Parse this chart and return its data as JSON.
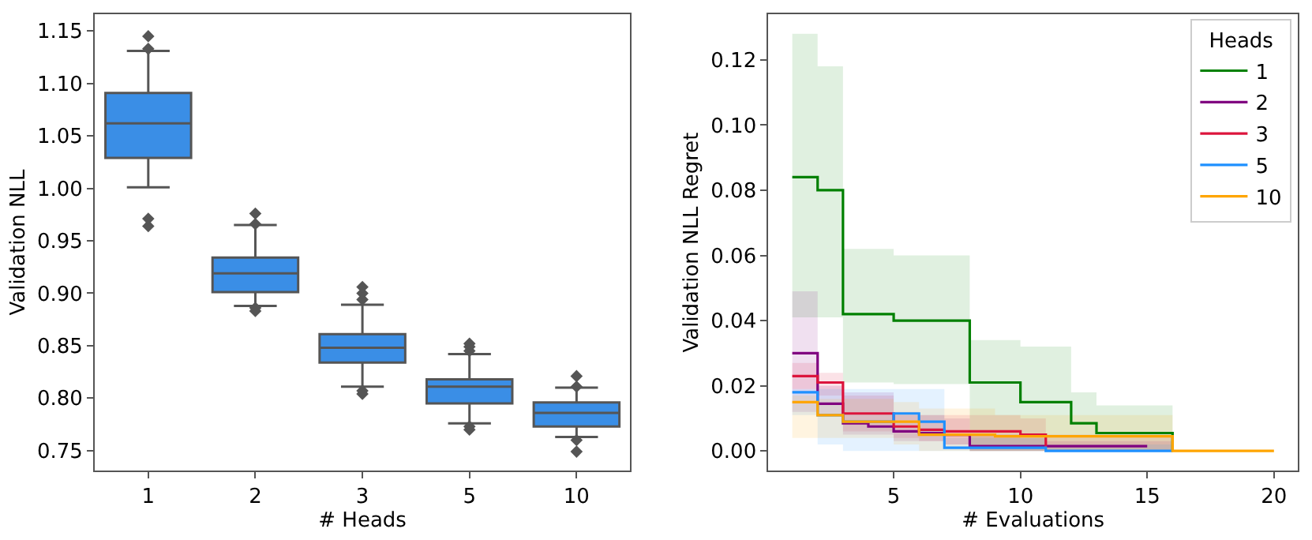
{
  "chart_data": [
    {
      "type": "box",
      "xlabel": "# Heads",
      "ylabel": "Validation NLL",
      "categories": [
        "1",
        "2",
        "3",
        "5",
        "10"
      ],
      "ylim": [
        0.731,
        1.166
      ],
      "yticks": [
        {
          "value": 0.75,
          "label": "0.75"
        },
        {
          "value": 0.8,
          "label": "0.80"
        },
        {
          "value": 0.85,
          "label": "0.85"
        },
        {
          "value": 0.9,
          "label": "0.90"
        },
        {
          "value": 0.95,
          "label": "0.95"
        },
        {
          "value": 1.0,
          "label": "1.00"
        },
        {
          "value": 1.05,
          "label": "1.05"
        },
        {
          "value": 1.1,
          "label": "1.10"
        },
        {
          "value": 1.15,
          "label": "1.15"
        }
      ],
      "legend": false,
      "series": [
        {
          "color": "#3a8ee6",
          "boxes": [
            {
              "low": 1.001,
              "q1": 1.029,
              "median": 1.062,
              "q3": 1.091,
              "high": 1.131,
              "outliers": [
                0.964,
                0.971,
                1.133,
                1.145
              ]
            },
            {
              "low": 0.888,
              "q1": 0.901,
              "median": 0.919,
              "q3": 0.934,
              "high": 0.965,
              "outliers": [
                0.883,
                0.886,
                0.966,
                0.976
              ]
            },
            {
              "low": 0.811,
              "q1": 0.834,
              "median": 0.848,
              "q3": 0.861,
              "high": 0.889,
              "outliers": [
                0.804,
                0.807,
                0.894,
                0.9,
                0.906
              ]
            },
            {
              "low": 0.776,
              "q1": 0.795,
              "median": 0.811,
              "q3": 0.818,
              "high": 0.842,
              "outliers": [
                0.77,
                0.773,
                0.845,
                0.849,
                0.852
              ]
            },
            {
              "low": 0.763,
              "q1": 0.773,
              "median": 0.786,
              "q3": 0.796,
              "high": 0.81,
              "outliers": [
                0.749,
                0.76,
                0.811,
                0.821
              ]
            }
          ]
        }
      ]
    },
    {
      "type": "step",
      "xlabel": "# Evaluations",
      "ylabel": "Validation NLL Regret",
      "legend_title": "Heads",
      "legend": "top right",
      "marker": "none",
      "line_style": "solid",
      "x": [
        1,
        2,
        3,
        4,
        5,
        6,
        7,
        8,
        9,
        10,
        11,
        12,
        13,
        14,
        15,
        16,
        17,
        18,
        19,
        20
      ],
      "xlim": [
        0.06,
        20.94
      ],
      "xticks": [
        5,
        10,
        15,
        20
      ],
      "ylim": [
        -0.006,
        0.134
      ],
      "yticks": [
        {
          "value": 0,
          "label": "0.00"
        },
        {
          "value": 0.02,
          "label": "0.02"
        },
        {
          "value": 0.04,
          "label": "0.04"
        },
        {
          "value": 0.06,
          "label": "0.06"
        },
        {
          "value": 0.08,
          "label": "0.08"
        },
        {
          "value": 0.1,
          "label": "0.10"
        },
        {
          "value": 0.12,
          "label": "0.12"
        }
      ],
      "series": [
        {
          "name": "1",
          "color": "#008000",
          "values": [
            0.084,
            0.08,
            0.042,
            0.042,
            0.04,
            0.04,
            0.04,
            0.021,
            0.021,
            0.015,
            0.015,
            0.0085,
            0.0055,
            0.0055,
            0.0055,
            0,
            null,
            null,
            null,
            null
          ],
          "upper": [
            0.128,
            0.118,
            0.062,
            0.062,
            0.06,
            0.06,
            0.06,
            0.034,
            0.034,
            0.032,
            0.032,
            0.018,
            0.014,
            0.014,
            0.014,
            0,
            0,
            0,
            0,
            0
          ],
          "lower": [
            0.041,
            0.041,
            0.021,
            0.021,
            0.0205,
            0.0205,
            0.0205,
            0,
            0,
            0,
            0,
            0,
            0,
            0,
            0,
            0,
            0,
            0,
            0,
            0
          ]
        },
        {
          "name": "2",
          "color": "#800080",
          "values": [
            0.03,
            0.0145,
            0.0085,
            0.0075,
            0.006,
            0.0055,
            0.005,
            0.0015,
            0.0015,
            0.0015,
            0.0015,
            0.0015,
            0.0015,
            0.0015,
            0.0015,
            null,
            null,
            null,
            null,
            null
          ],
          "upper": [
            0.049,
            0.02,
            0.018,
            0.018,
            0.011,
            0.011,
            0.01,
            0.005,
            0.005,
            0.004,
            0.003,
            0.003,
            0.003,
            0.003,
            0.003,
            0,
            0,
            0,
            0,
            0
          ],
          "lower": [
            0.012,
            0.011,
            0.005,
            0.005,
            0.003,
            0.003,
            0.002,
            0,
            0,
            0,
            0,
            0,
            0,
            0,
            0,
            0,
            0,
            0,
            0,
            0
          ]
        },
        {
          "name": "3",
          "color": "#dc143c",
          "values": [
            0.023,
            0.021,
            0.0115,
            0.0115,
            0.0075,
            0.0065,
            0.006,
            0.006,
            0.006,
            0.005,
            0.001,
            null,
            null,
            null,
            null,
            null,
            null,
            null,
            null,
            null
          ],
          "upper": [
            0.027,
            0.024,
            0.017,
            0.017,
            0.012,
            0.011,
            0.011,
            0.011,
            0.011,
            0.01,
            0.005,
            0.005,
            0.005,
            0.005,
            0.005,
            0,
            0,
            0,
            0,
            0
          ],
          "lower": [
            0.019,
            0.017,
            0.006,
            0.006,
            0.004,
            0.003,
            0.002,
            0,
            0,
            0,
            0,
            0,
            0,
            0,
            0,
            0,
            0,
            0,
            0,
            0
          ]
        },
        {
          "name": "5",
          "color": "#1e90ff",
          "values": [
            0.018,
            0.011,
            0.009,
            0.009,
            0.0115,
            0.009,
            0.001,
            0.001,
            0.001,
            0.001,
            0,
            0,
            0,
            0,
            0,
            0,
            null,
            null,
            null,
            null
          ],
          "upper": [
            0.019,
            0.019,
            0.019,
            0.019,
            0.019,
            0.019,
            0.004,
            0.004,
            0.004,
            0.004,
            0.002,
            0.002,
            0.002,
            0.002,
            0.002,
            0,
            0,
            0,
            0,
            0
          ],
          "lower": [
            0.011,
            0.002,
            0,
            0,
            0,
            0,
            0,
            0,
            0,
            0,
            0,
            0,
            0,
            0,
            0,
            0,
            0,
            0,
            0,
            0
          ]
        },
        {
          "name": "10",
          "color": "#ffa500",
          "values": [
            0.015,
            0.011,
            0.009,
            0.009,
            0.009,
            0.005,
            0.005,
            0.005,
            0.0045,
            0.0045,
            0.0045,
            0.0045,
            0.0045,
            0.0045,
            0.0045,
            0,
            0,
            0,
            0,
            0
          ],
          "upper": [
            0.017,
            0.016,
            0.016,
            0.016,
            0.015,
            0.013,
            0.013,
            0.013,
            0.011,
            0.011,
            0.011,
            0.011,
            0.011,
            0.011,
            0.011,
            0,
            0,
            0,
            0,
            0
          ],
          "lower": [
            0.004,
            0.004,
            0.004,
            0.004,
            0.002,
            0,
            0,
            0,
            0,
            0,
            0,
            0,
            0,
            0,
            0,
            0,
            0,
            0,
            0,
            0
          ]
        }
      ]
    }
  ]
}
